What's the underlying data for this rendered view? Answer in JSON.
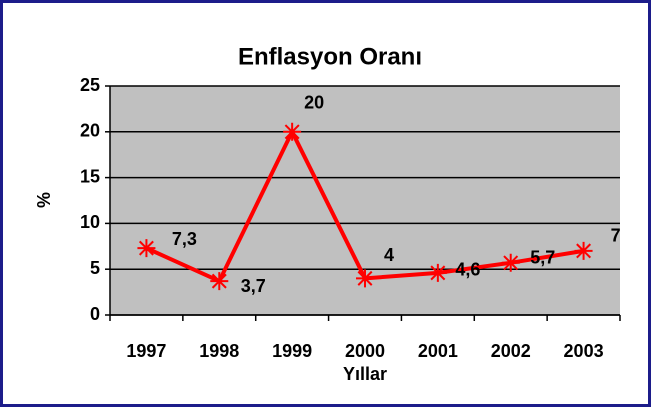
{
  "chart_data": {
    "type": "line",
    "title": "Enflasyon Oranı",
    "xlabel": "Yıllar",
    "ylabel": "%",
    "categories": [
      "1997",
      "1998",
      "1999",
      "2000",
      "2001",
      "2002",
      "2003"
    ],
    "values": [
      7.3,
      3.7,
      20,
      4,
      4.6,
      5.7,
      7
    ],
    "value_labels": [
      "7,3",
      "3,7",
      "20",
      "4",
      "4,6",
      "5,7",
      "7"
    ],
    "color": "#ff0000",
    "ylim": [
      0,
      25
    ],
    "yticks": [
      0,
      5,
      10,
      15,
      20,
      25
    ],
    "grid": true
  }
}
